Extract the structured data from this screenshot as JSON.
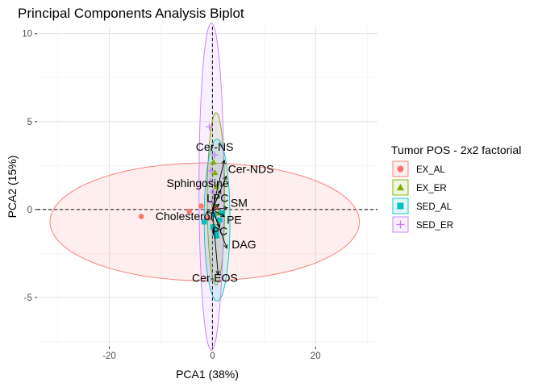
{
  "chart_data": {
    "type": "scatter",
    "title": "Principal Components Analysis Biplot",
    "xlabel": "PCA1 (38%)",
    "ylabel": "PCA2 (15%)",
    "xlim": [
      -34,
      32
    ],
    "ylim": [
      -7.8,
      10.4
    ],
    "xticks": [
      -20,
      0,
      20
    ],
    "yticks": [
      -5,
      0,
      5,
      10
    ],
    "grid": true,
    "legend": {
      "title": "Tumor POS - 2x2 factorial",
      "position": "right"
    },
    "groups": [
      {
        "name": "EX_AL",
        "color": "#F8766D",
        "shape": "circle",
        "ellipse": {
          "cx": -1.5,
          "cy": -0.7,
          "rx": 30,
          "ry": 3.35
        },
        "points": [
          [
            -13.8,
            -0.4
          ],
          [
            -4.5,
            -0.1
          ],
          [
            -2.2,
            0.2
          ],
          [
            -0.8,
            -0.5
          ],
          [
            0.6,
            0.1
          ],
          [
            1.5,
            -0.2
          ]
        ]
      },
      {
        "name": "EX_ER",
        "color": "#7CAE00",
        "shape": "triangle",
        "ellipse": {
          "cx": 0.7,
          "cy": 0.6,
          "rx": 1.7,
          "ry": 4.9
        },
        "points": [
          [
            0.5,
            2.1
          ],
          [
            0.8,
            1.3
          ],
          [
            0.4,
            0.3
          ],
          [
            1.2,
            -0.2
          ],
          [
            0.3,
            -0.9
          ],
          [
            0.9,
            -1.5
          ],
          [
            0.2,
            2.7
          ]
        ]
      },
      {
        "name": "SED_AL",
        "color": "#00BFC4",
        "shape": "square",
        "ellipse": {
          "cx": 0.9,
          "cy": -0.6,
          "rx": 2.5,
          "ry": 4.6
        },
        "points": [
          [
            -1.6,
            -0.7
          ],
          [
            0.1,
            -1.0
          ],
          [
            0.7,
            -1.2
          ],
          [
            1.4,
            -0.6
          ],
          [
            1.9,
            -0.2
          ],
          [
            0.8,
            -1.5
          ],
          [
            0.3,
            -0.3
          ]
        ]
      },
      {
        "name": "SED_ER",
        "color": "#C77CFF",
        "shape": "plus",
        "ellipse": {
          "cx": -0.2,
          "cy": 1.3,
          "rx": 2.4,
          "ry": 9.3
        },
        "points": [
          [
            -0.6,
            4.7
          ],
          [
            -0.3,
            2.2
          ],
          [
            0.2,
            1.0
          ],
          [
            -0.1,
            0.4
          ],
          [
            0.4,
            3.1
          ],
          [
            -0.4,
            1.6
          ]
        ]
      }
    ],
    "loadings": [
      {
        "name": "Cer-NS",
        "x": 2.3,
        "y": 2.8
      },
      {
        "name": "Cer-NDS",
        "x": 2.7,
        "y": 1.9
      },
      {
        "name": "Sphingosine",
        "x": 1.6,
        "y": 1.1
      },
      {
        "name": "LPC",
        "x": 1.3,
        "y": 0.3
      },
      {
        "name": "SM",
        "x": 2.9,
        "y": 0.1
      },
      {
        "name": "PE",
        "x": 2.3,
        "y": -0.4
      },
      {
        "name": "PC",
        "x": 1.4,
        "y": -1.0
      },
      {
        "name": "DAG",
        "x": 2.8,
        "y": -2.2
      },
      {
        "name": "Cer-EOS",
        "x": 1.1,
        "y": -3.7
      },
      {
        "name": "Cholesterol",
        "x": -1.2,
        "y": -0.2
      }
    ]
  }
}
